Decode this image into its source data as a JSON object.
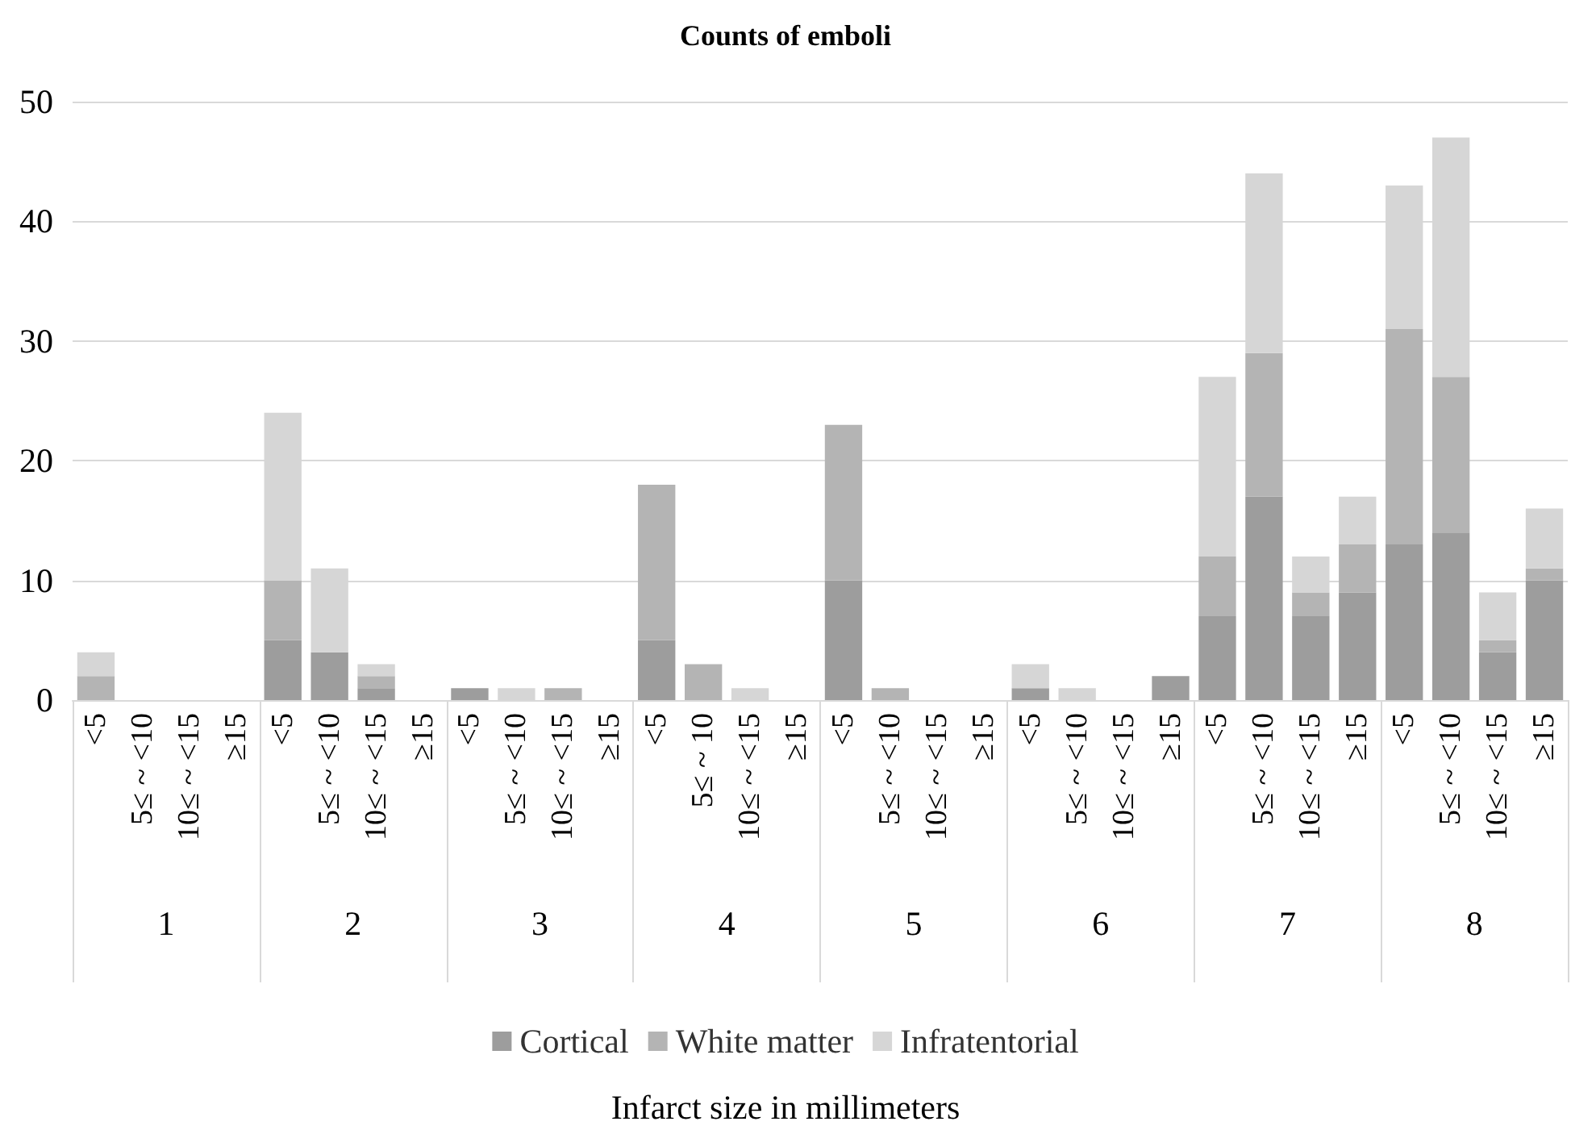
{
  "chart_data": {
    "type": "bar",
    "title": "Counts of emboli",
    "categories": [
      "<5",
      "5≤ ~ <10",
      "10≤ ~ <15",
      "≥15",
      "<5",
      "5≤ ~ <10",
      "10≤ ~ <15",
      "≥15",
      "<5",
      "5≤ ~ <10",
      "10≤ ~ <15",
      "≥15",
      "<5",
      "5≤ ~ 10",
      "10≤ ~ <15",
      "≥15",
      "<5",
      "5≤ ~ <10",
      "10≤ ~ <15",
      "≥15",
      "<5",
      "5≤ ~ <10",
      "10≤ ~ <15",
      "≥15",
      "<5",
      "5≤ ~ <10",
      "10≤ ~ <15",
      "≥15",
      "<5",
      "5≤ ~ <10",
      "10≤ ~ <15",
      "≥15"
    ],
    "annotations": [
      "1",
      "2",
      "3",
      "4",
      "5",
      "6",
      "7",
      "8",
      "Infarct size in millimeters"
    ],
    "stacked": true,
    "series": [
      {
        "name": "Cortical",
        "color": "#9d9d9d",
        "values": [
          0,
          0,
          0,
          0,
          5,
          4,
          1,
          0,
          1,
          0,
          0,
          0,
          5,
          0,
          0,
          0,
          10,
          0,
          0,
          0,
          1,
          0,
          0,
          2,
          7,
          17,
          7,
          9,
          13,
          14,
          4,
          10
        ]
      },
      {
        "name": "White matter",
        "color": "#b4b4b4",
        "values": [
          2,
          0,
          0,
          0,
          5,
          0,
          1,
          0,
          0,
          0,
          1,
          0,
          13,
          3,
          0,
          0,
          13,
          1,
          0,
          0,
          0,
          0,
          0,
          0,
          5,
          12,
          2,
          4,
          18,
          13,
          1,
          1
        ]
      },
      {
        "name": "Infratentorial",
        "color": "#d6d6d6",
        "values": [
          2,
          0,
          0,
          0,
          14,
          7,
          1,
          0,
          0,
          1,
          0,
          0,
          0,
          0,
          1,
          0,
          0,
          0,
          0,
          0,
          2,
          1,
          0,
          0,
          15,
          15,
          3,
          4,
          12,
          20,
          4,
          5
        ]
      }
    ],
    "ylim": [
      0,
      50
    ],
    "yticks": [
      0,
      10,
      20,
      30,
      40,
      50
    ],
    "grid": "y",
    "legend": "bottom"
  }
}
